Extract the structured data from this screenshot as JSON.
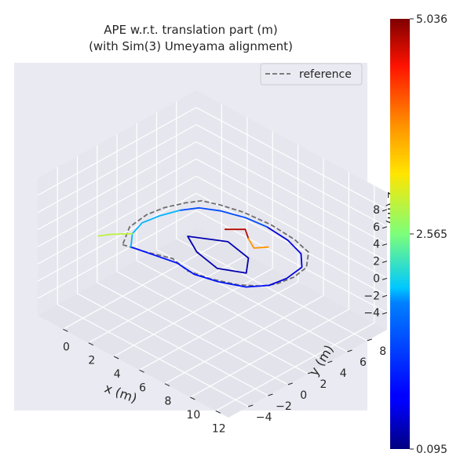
{
  "chart_data": {
    "type": "line3d",
    "title_line1": "APE w.r.t. translation part (m)",
    "title_line2": "(with Sim(3) Umeyama alignment)",
    "xlabel": "x (m)",
    "ylabel": "y (m)",
    "zlabel": "z (m)",
    "x_ticks": [
      "0",
      "2",
      "4",
      "6",
      "8",
      "10",
      "12"
    ],
    "y_ticks": [
      "−4",
      "−2",
      "0",
      "2",
      "4",
      "6",
      "8"
    ],
    "z_ticks": [
      "−4",
      "−2",
      "0",
      "2",
      "4",
      "6",
      "8"
    ],
    "xlim": [
      -2,
      13
    ],
    "ylim": [
      -6,
      10
    ],
    "zlim": [
      -6,
      10
    ],
    "legend": {
      "label": "reference",
      "style": "dashed",
      "color": "#6e6e6e",
      "placement": "top-right"
    },
    "colorbar": {
      "colormap": "jet",
      "min": 0.095,
      "max": 5.036,
      "ticks": [
        "5.036",
        "2.565",
        "0.095"
      ]
    },
    "reference_path": [
      [
        0,
        0
      ],
      [
        1.5,
        0.5
      ],
      [
        3,
        1.2
      ],
      [
        4.5,
        0.8
      ],
      [
        6,
        1.2
      ],
      [
        7.5,
        2
      ],
      [
        8.5,
        3
      ],
      [
        9,
        4
      ],
      [
        9.2,
        5.5
      ],
      [
        9,
        7
      ],
      [
        8,
        8.5
      ],
      [
        6.5,
        9
      ],
      [
        4.5,
        9.2
      ],
      [
        2.5,
        9
      ],
      [
        1,
        8.5
      ],
      [
        0,
        8
      ],
      [
        -0.5,
        7
      ],
      [
        -1,
        5.5
      ],
      [
        -1.2,
        4
      ],
      [
        -1,
        2
      ],
      [
        0,
        0
      ]
    ],
    "estimate_segments": [
      {
        "ape": 0.8,
        "points": [
          [
            0.5,
            0.2
          ],
          [
            2,
            0.6
          ],
          [
            3.5,
            1
          ],
          [
            5,
            0.8
          ],
          [
            6.5,
            1.3
          ],
          [
            8,
            2.2
          ],
          [
            8.8,
            3.5
          ]
        ]
      },
      {
        "ape": 0.5,
        "points": [
          [
            8.8,
            3.5
          ],
          [
            9,
            5
          ],
          [
            8.8,
            6.8
          ],
          [
            7.8,
            8
          ],
          [
            6.3,
            8.6
          ],
          [
            4.5,
            8.8
          ]
        ]
      },
      {
        "ape": 1.3,
        "points": [
          [
            4.5,
            8.8
          ],
          [
            3,
            8.6
          ],
          [
            1.5,
            8
          ],
          [
            0.4,
            7.2
          ],
          [
            -0.2,
            6
          ]
        ]
      },
      {
        "ape": 1.9,
        "points": [
          [
            -0.2,
            6
          ],
          [
            -0.6,
            4.5
          ],
          [
            -0.8,
            3
          ],
          [
            -0.4,
            1.5
          ],
          [
            0.5,
            0.2
          ]
        ]
      },
      {
        "ape": 2.9,
        "points": [
          [
            -0.4,
            1.5
          ],
          [
            -1.2,
            0.4
          ],
          [
            -1.6,
            -0.4
          ]
        ]
      },
      {
        "ape": 0.3,
        "points": [
          [
            2,
            4
          ],
          [
            4,
            5.5
          ],
          [
            6,
            5
          ],
          [
            7,
            3.5
          ],
          [
            5.5,
            2.5
          ],
          [
            3.5,
            3
          ],
          [
            2,
            4
          ]
        ]
      },
      {
        "ape": 4.8,
        "points": [
          [
            3,
            6.5
          ],
          [
            3.8,
            7.5
          ],
          [
            4.6,
            6.8
          ]
        ]
      },
      {
        "ape": 3.8,
        "points": [
          [
            4.6,
            6.8
          ],
          [
            5.5,
            6.2
          ],
          [
            6,
            7
          ]
        ]
      }
    ]
  }
}
